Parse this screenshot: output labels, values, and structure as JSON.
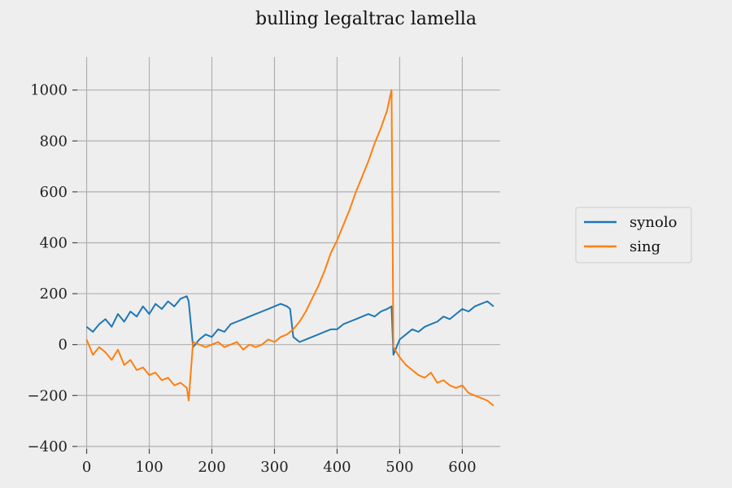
{
  "chart_data": {
    "type": "line",
    "title": "bulling legaltrac lamella",
    "xlabel": "",
    "ylabel": "",
    "xlim": [
      -15,
      680
    ],
    "ylim": [
      -410,
      1130
    ],
    "xticks": [
      0,
      100,
      200,
      300,
      400,
      500,
      600
    ],
    "yticks": [
      -400,
      -200,
      0,
      200,
      400,
      600,
      800,
      1000
    ],
    "ytick_labels": [
      "−400",
      "−200",
      "0",
      "200",
      "400",
      "600",
      "800",
      "1000"
    ],
    "grid": true,
    "legend_position": "right",
    "series": [
      {
        "name": "synolo",
        "color": "#1f77b4",
        "x": [
          0,
          10,
          20,
          30,
          40,
          50,
          60,
          70,
          80,
          90,
          100,
          110,
          120,
          130,
          140,
          150,
          160,
          163,
          170,
          180,
          190,
          200,
          210,
          220,
          230,
          240,
          250,
          260,
          270,
          280,
          290,
          300,
          310,
          320,
          325,
          330,
          340,
          350,
          360,
          370,
          380,
          390,
          400,
          410,
          420,
          430,
          440,
          450,
          460,
          470,
          480,
          487,
          490,
          500,
          510,
          520,
          530,
          540,
          550,
          560,
          570,
          580,
          590,
          600,
          610,
          620,
          630,
          640,
          650
        ],
        "y": [
          70,
          50,
          80,
          100,
          70,
          120,
          90,
          130,
          110,
          150,
          120,
          160,
          140,
          170,
          150,
          180,
          190,
          170,
          -10,
          20,
          40,
          30,
          60,
          50,
          80,
          90,
          100,
          110,
          120,
          130,
          140,
          150,
          160,
          150,
          140,
          30,
          10,
          20,
          30,
          40,
          50,
          60,
          60,
          80,
          90,
          100,
          110,
          120,
          110,
          130,
          140,
          150,
          -40,
          20,
          40,
          60,
          50,
          70,
          80,
          90,
          110,
          100,
          120,
          140,
          130,
          150,
          160,
          170,
          150
        ]
      },
      {
        "name": "sing",
        "color": "#ff7f0e",
        "x": [
          0,
          10,
          20,
          30,
          40,
          50,
          60,
          70,
          80,
          90,
          100,
          110,
          120,
          130,
          140,
          150,
          160,
          163,
          170,
          180,
          190,
          200,
          210,
          220,
          230,
          240,
          250,
          260,
          270,
          280,
          290,
          300,
          310,
          320,
          330,
          340,
          350,
          360,
          370,
          380,
          390,
          400,
          410,
          420,
          430,
          440,
          450,
          460,
          470,
          480,
          485,
          487,
          490,
          500,
          510,
          520,
          530,
          540,
          550,
          560,
          570,
          580,
          590,
          600,
          610,
          620,
          630,
          640,
          650
        ],
        "y": [
          20,
          -40,
          -10,
          -30,
          -60,
          -20,
          -80,
          -60,
          -100,
          -90,
          -120,
          -110,
          -140,
          -130,
          -160,
          -150,
          -170,
          -220,
          10,
          0,
          -10,
          0,
          10,
          -10,
          0,
          10,
          -20,
          0,
          -10,
          0,
          20,
          10,
          30,
          40,
          60,
          90,
          130,
          180,
          230,
          290,
          360,
          410,
          470,
          530,
          600,
          660,
          720,
          790,
          850,
          920,
          980,
          1000,
          -10,
          -50,
          -80,
          -100,
          -120,
          -130,
          -110,
          -150,
          -140,
          -160,
          -170,
          -160,
          -190,
          -200,
          -210,
          -220,
          -240
        ]
      }
    ]
  }
}
